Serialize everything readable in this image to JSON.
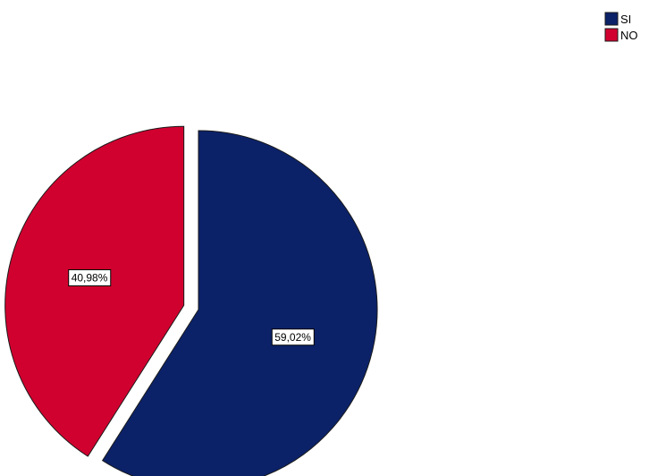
{
  "chart_data": {
    "type": "pie",
    "slices": [
      {
        "label": "SI",
        "value": 59.02,
        "display": "59,02%",
        "color": "#0b2269"
      },
      {
        "label": "NO",
        "value": 40.98,
        "display": "40,98%",
        "color": "#d1012f"
      }
    ],
    "start_angle_deg": 0,
    "direction": "clockwise",
    "exploded": "NO",
    "legend": {
      "placement": "top-right",
      "entries": [
        "SI",
        "NO"
      ]
    }
  }
}
